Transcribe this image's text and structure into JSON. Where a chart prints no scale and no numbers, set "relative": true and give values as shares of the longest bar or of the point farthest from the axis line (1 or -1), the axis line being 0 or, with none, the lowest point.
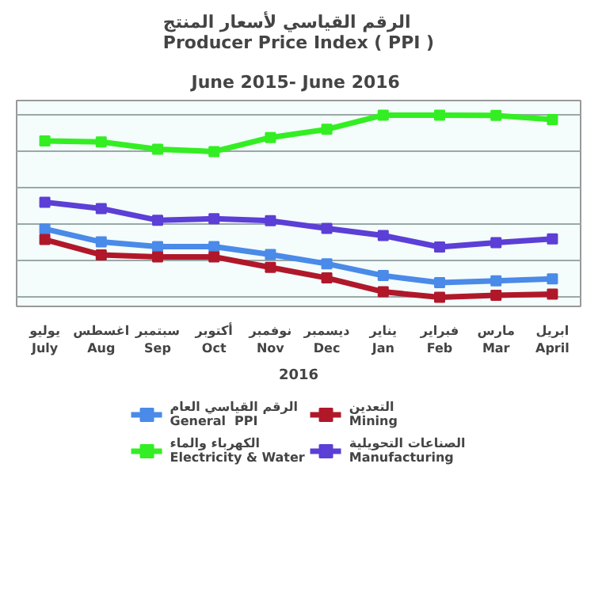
{
  "chart_data": {
    "type": "line",
    "title": "الرقم القياسي لأسعار المنتج\nProducer Price Index ( PPI )",
    "subtitle": "June 2015-  June 2016",
    "xlabel": "2016",
    "categories": [
      "يوليو\nJuly",
      "اغسطس\nAug",
      "سبتمبر\nSep",
      "أكتوبر\nOct",
      "نوفمبر\nNov",
      "ديسمبر\nDec",
      "يناير\nJan",
      "فبراير\nFeb",
      "مارس\nMar",
      "ابريل\nApril"
    ],
    "relative": true,
    "grid": "y",
    "marker": "square",
    "line_style": "solid",
    "legend": "bottom",
    "series": [
      {
        "name": "الرقم القياسي العام\nGeneral  PPI",
        "color": "#4a8ae8",
        "values": [
          0.375,
          0.304,
          0.278,
          0.278,
          0.235,
          0.184,
          0.119,
          0.08,
          0.09,
          0.101
        ]
      },
      {
        "name": "التعدين\nMining",
        "color": "#b0182a",
        "values": [
          0.317,
          0.233,
          0.222,
          0.222,
          0.164,
          0.106,
          0.03,
          0.0,
          0.011,
          0.017
        ]
      },
      {
        "name": "الكهرباء والماء\nElectricity & Water",
        "color": "#33ee22",
        "values": [
          0.858,
          0.853,
          0.813,
          0.8,
          0.877,
          0.922,
          1.0,
          1.0,
          0.998,
          0.976
        ]
      },
      {
        "name": "الصناعات التحويلية\nManufacturing",
        "color": "#5b3fd6",
        "values": [
          0.522,
          0.487,
          0.423,
          0.431,
          0.42,
          0.378,
          0.339,
          0.276,
          0.3,
          0.321
        ]
      }
    ]
  }
}
